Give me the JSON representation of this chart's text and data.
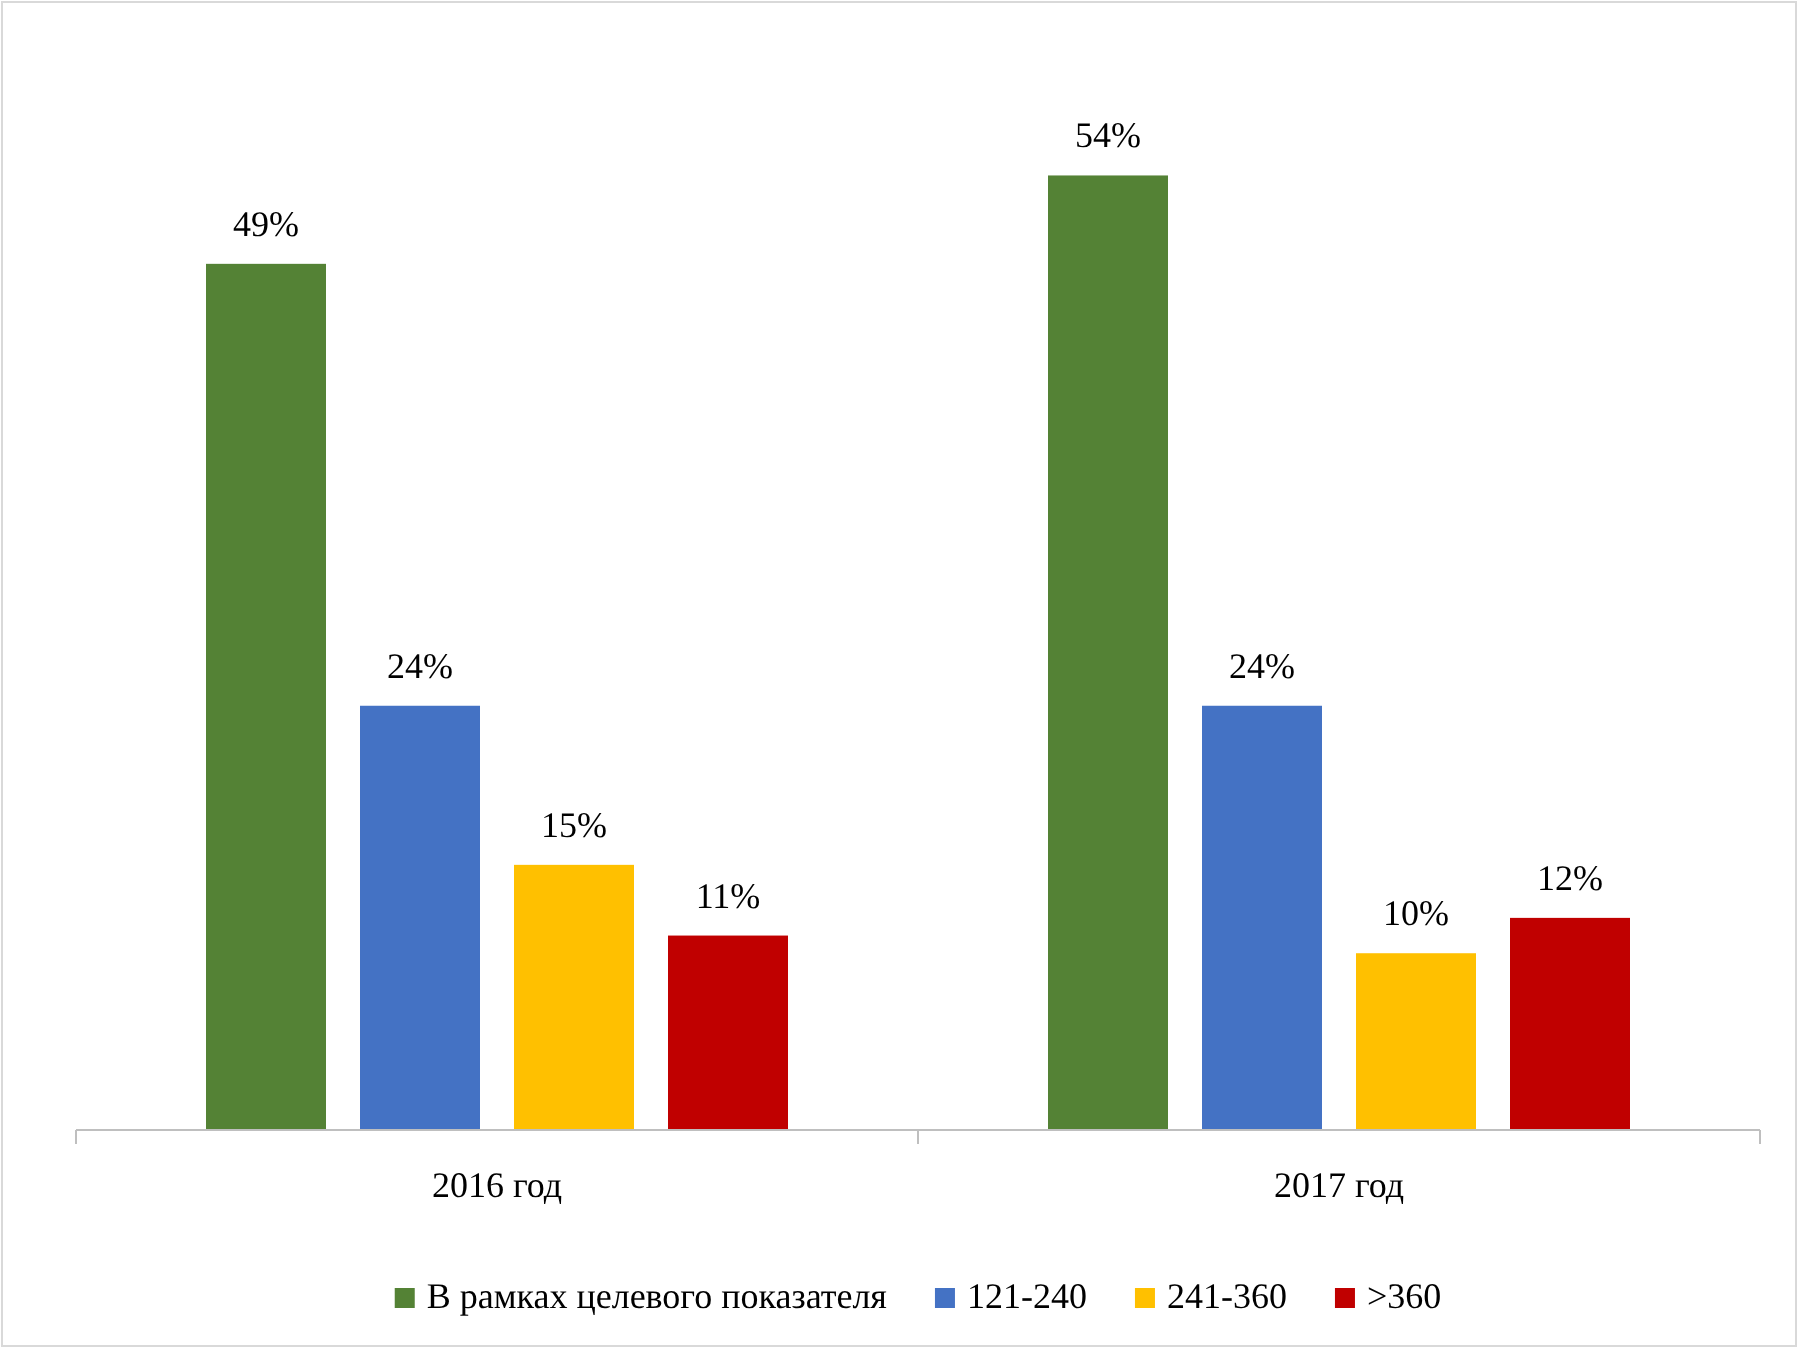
{
  "chart_data": {
    "type": "bar",
    "categories": [
      "2016 год",
      "2017 год"
    ],
    "series": [
      {
        "name": "В рамках целевого показателя",
        "color": "#548235",
        "values": [
          49,
          54
        ],
        "value_labels": [
          "49%",
          "54%"
        ]
      },
      {
        "name": "121-240",
        "color": "#4472c4",
        "values": [
          24,
          24
        ],
        "value_labels": [
          "24%",
          "24%"
        ]
      },
      {
        "name": "241-360",
        "color": "#ffc000",
        "values": [
          15,
          10
        ],
        "value_labels": [
          "15%",
          "10%"
        ]
      },
      {
        "name": ">360",
        "color": "#c00000",
        "values": [
          11,
          12
        ],
        "value_labels": [
          "11%",
          "12%"
        ]
      }
    ],
    "legend": "bottom"
  }
}
